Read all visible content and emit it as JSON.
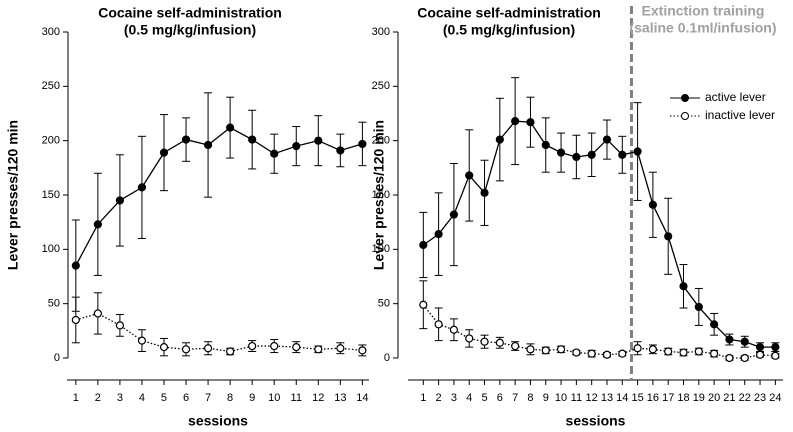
{
  "chart_data": [
    {
      "type": "line",
      "title": "Cocaine self-administration",
      "subtitle": "(0.5 mg/kg/infusion)",
      "xlabel": "sessions",
      "ylabel": "Lever presses/120 min",
      "x": [
        1,
        2,
        3,
        4,
        5,
        6,
        7,
        8,
        9,
        10,
        11,
        12,
        13,
        14
      ],
      "xlim": [
        0.6,
        14.3
      ],
      "xticks": [
        1,
        2,
        3,
        4,
        5,
        6,
        7,
        8,
        9,
        10,
        11,
        12,
        13,
        14
      ],
      "ylim": [
        0,
        300
      ],
      "yticks": [
        0,
        50,
        100,
        150,
        200,
        250,
        300
      ],
      "series": [
        {
          "name": "active lever",
          "color": "#000000",
          "marker": "filled",
          "linestyle": "solid",
          "values": [
            85,
            123,
            145,
            157,
            189,
            201,
            196,
            212,
            201,
            188,
            195,
            200,
            191,
            197
          ],
          "errors": [
            42,
            47,
            42,
            47,
            35,
            20,
            48,
            28,
            27,
            18,
            18,
            23,
            15,
            20
          ]
        },
        {
          "name": "inactive lever",
          "color": "#000000",
          "marker": "open",
          "linestyle": "dotted",
          "values": [
            35,
            41,
            30,
            16,
            10,
            8,
            9,
            6,
            11,
            11,
            10,
            8,
            9,
            7
          ],
          "errors": [
            21,
            19,
            10,
            10,
            8,
            6,
            6,
            3,
            5,
            6,
            5,
            3,
            5,
            5
          ]
        }
      ]
    },
    {
      "type": "line",
      "title": "Cocaine self-administration",
      "subtitle": "(0.5 mg/kg/infusion)",
      "annotation": {
        "title": "Extinction training",
        "subtitle": "(saline 0.1ml/infusion)",
        "x": 14.6
      },
      "xlabel": "sessions",
      "ylabel": "Lever presses/120 min",
      "x": [
        1,
        2,
        3,
        4,
        5,
        6,
        7,
        8,
        9,
        10,
        11,
        12,
        13,
        14,
        15,
        16,
        17,
        18,
        19,
        20,
        21,
        22,
        23,
        24
      ],
      "xlim": [
        0,
        24.5
      ],
      "xticks": [
        1,
        2,
        3,
        4,
        5,
        6,
        7,
        8,
        9,
        10,
        11,
        12,
        13,
        14,
        15,
        16,
        17,
        18,
        19,
        20,
        21,
        22,
        23,
        24
      ],
      "ylim": [
        0,
        300
      ],
      "yticks": [
        0,
        50,
        100,
        150,
        200,
        250,
        300
      ],
      "legend": "upper right",
      "series": [
        {
          "name": "active lever",
          "color": "#000000",
          "marker": "filled",
          "linestyle": "solid",
          "values": [
            104,
            114,
            132,
            168,
            152,
            201,
            218,
            217,
            196,
            189,
            185,
            187,
            201,
            187,
            190,
            141,
            112,
            66,
            47,
            31,
            17,
            15,
            10,
            10
          ],
          "errors": [
            30,
            38,
            47,
            42,
            30,
            38,
            40,
            23,
            25,
            18,
            20,
            20,
            18,
            17,
            45,
            30,
            35,
            20,
            17,
            10,
            5,
            5,
            4,
            4
          ]
        },
        {
          "name": "inactive lever",
          "color": "#000000",
          "marker": "open",
          "linestyle": "dotted",
          "values": [
            49,
            31,
            26,
            18,
            15,
            14,
            11,
            8,
            7,
            8,
            5,
            4,
            3,
            4,
            9,
            8,
            6,
            5,
            6,
            4,
            0,
            0,
            3,
            2
          ],
          "errors": [
            22,
            15,
            10,
            8,
            6,
            5,
            4,
            5,
            3,
            3,
            2,
            3,
            2,
            2,
            6,
            4,
            3,
            3,
            3,
            3,
            2,
            2,
            2,
            2
          ]
        }
      ]
    }
  ]
}
